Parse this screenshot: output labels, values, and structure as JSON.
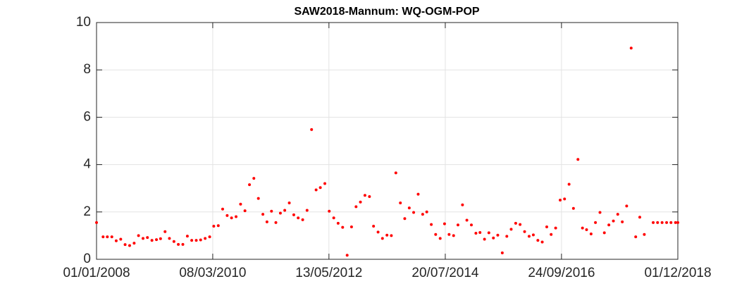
{
  "chart_data": {
    "type": "scatter",
    "title": "SAW2018-Mannum: WQ-OGM-POP",
    "x": [
      "2008-01-01",
      "2008-02-15",
      "2008-03-15",
      "2008-04-15",
      "2008-05-15",
      "2008-06-15",
      "2008-07-15",
      "2008-08-15",
      "2008-09-15",
      "2008-10-15",
      "2008-11-15",
      "2008-12-15",
      "2009-01-15",
      "2009-02-15",
      "2009-03-15",
      "2009-04-15",
      "2009-05-15",
      "2009-06-15",
      "2009-07-15",
      "2009-08-15",
      "2009-09-15",
      "2009-10-15",
      "2009-11-15",
      "2009-12-15",
      "2010-01-15",
      "2010-02-15",
      "2010-03-15",
      "2010-04-15",
      "2010-05-15",
      "2010-06-15",
      "2010-07-15",
      "2010-08-15",
      "2010-09-15",
      "2010-10-15",
      "2010-11-15",
      "2010-12-15",
      "2011-01-15",
      "2011-02-15",
      "2011-03-15",
      "2011-04-15",
      "2011-05-15",
      "2011-06-15",
      "2011-07-15",
      "2011-08-15",
      "2011-09-15",
      "2011-10-15",
      "2011-11-15",
      "2011-12-15",
      "2012-01-15",
      "2012-02-15",
      "2012-03-15",
      "2012-04-15",
      "2012-05-15",
      "2012-06-15",
      "2012-07-15",
      "2012-08-15",
      "2012-09-15",
      "2012-10-15",
      "2012-11-15",
      "2012-12-15",
      "2013-01-15",
      "2013-02-15",
      "2013-03-15",
      "2013-04-15",
      "2013-05-15",
      "2013-06-15",
      "2013-07-15",
      "2013-08-15",
      "2013-09-15",
      "2013-10-15",
      "2013-11-15",
      "2013-12-15",
      "2014-01-15",
      "2014-02-15",
      "2014-03-15",
      "2014-04-15",
      "2014-05-15",
      "2014-06-15",
      "2014-07-15",
      "2014-08-15",
      "2014-09-15",
      "2014-10-15",
      "2014-11-15",
      "2014-12-15",
      "2015-01-15",
      "2015-02-15",
      "2015-03-15",
      "2015-04-15",
      "2015-05-15",
      "2015-06-15",
      "2015-07-15",
      "2015-08-15",
      "2015-09-15",
      "2015-10-15",
      "2015-11-15",
      "2015-12-15",
      "2016-01-15",
      "2016-02-15",
      "2016-03-15",
      "2016-04-15",
      "2016-05-15",
      "2016-06-15",
      "2016-07-15",
      "2016-08-15",
      "2016-09-15",
      "2016-10-15",
      "2016-11-15",
      "2016-12-15",
      "2017-01-15",
      "2017-02-15",
      "2017-03-15",
      "2017-04-15",
      "2017-05-15",
      "2017-06-15",
      "2017-07-15",
      "2017-08-15",
      "2017-09-15",
      "2017-10-15",
      "2017-11-15",
      "2017-12-15",
      "2018-01-15",
      "2018-02-15",
      "2018-03-15",
      "2018-04-15",
      "2018-06-15",
      "2018-07-15",
      "2018-08-15",
      "2018-09-15",
      "2018-10-15",
      "2018-11-15",
      "2018-12-01"
    ],
    "values": [
      1.55,
      0.95,
      0.95,
      0.95,
      0.78,
      0.85,
      0.62,
      0.58,
      0.68,
      1.0,
      0.88,
      0.92,
      0.8,
      0.83,
      0.87,
      1.17,
      0.88,
      0.75,
      0.63,
      0.63,
      0.98,
      0.8,
      0.8,
      0.82,
      0.88,
      0.95,
      1.4,
      1.42,
      2.12,
      1.85,
      1.75,
      1.8,
      2.33,
      2.05,
      3.15,
      3.42,
      2.57,
      1.9,
      1.58,
      2.03,
      1.55,
      1.95,
      2.07,
      2.38,
      1.88,
      1.75,
      1.67,
      2.07,
      5.48,
      2.93,
      3.03,
      3.2,
      2.03,
      1.75,
      1.52,
      1.35,
      0.17,
      1.37,
      2.22,
      2.42,
      2.7,
      2.65,
      1.4,
      1.15,
      0.88,
      1.02,
      1.0,
      3.65,
      2.38,
      1.72,
      2.17,
      1.98,
      2.75,
      1.9,
      2.0,
      1.47,
      1.05,
      0.88,
      1.5,
      1.05,
      1.0,
      1.45,
      2.3,
      1.65,
      1.45,
      1.1,
      1.13,
      0.85,
      1.12,
      0.9,
      1.02,
      0.27,
      0.97,
      1.27,
      1.52,
      1.47,
      1.17,
      0.97,
      1.03,
      0.8,
      0.73,
      1.37,
      1.05,
      1.32,
      2.5,
      2.55,
      3.17,
      2.15,
      4.22,
      1.32,
      1.25,
      1.07,
      1.55,
      1.98,
      1.12,
      1.45,
      1.62,
      1.9,
      1.58,
      2.25,
      8.92,
      0.95,
      1.78,
      1.05,
      1.55,
      1.55,
      1.55,
      1.55,
      1.55,
      1.55,
      1.55
    ],
    "color": "#ff0000",
    "xlim": [
      "2008-01-01",
      "2018-12-01"
    ],
    "xticks": [
      {
        "value": "2008-01-01",
        "label": "01/01/2008"
      },
      {
        "value": "2010-03-08",
        "label": "08/03/2010"
      },
      {
        "value": "2012-05-13",
        "label": "13/05/2012"
      },
      {
        "value": "2014-07-20",
        "label": "20/07/2014"
      },
      {
        "value": "2016-09-24",
        "label": "24/09/2016"
      },
      {
        "value": "2018-12-01",
        "label": "01/12/2018"
      }
    ],
    "ylim": [
      0,
      10
    ],
    "yticks": [
      0,
      2,
      4,
      6,
      8,
      10
    ],
    "grid": true
  }
}
